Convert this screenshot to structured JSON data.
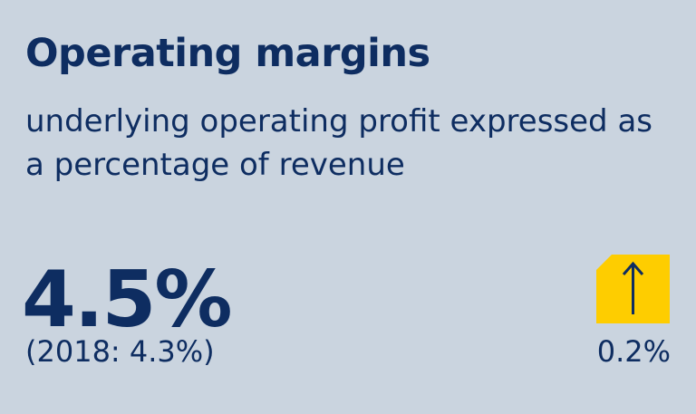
{
  "kpi": {
    "title": "Operating margins",
    "subtitle": "underlying operating profit expressed as a percentage of revenue",
    "value": "4.5%",
    "prior": "(2018: 4.3%)",
    "change": "0.2%",
    "change_direction": "up",
    "change_icon": "up-arrow-icon"
  },
  "colors": {
    "background": "#cad4df",
    "text": "#0e2d61",
    "badge": "#fecd00"
  }
}
